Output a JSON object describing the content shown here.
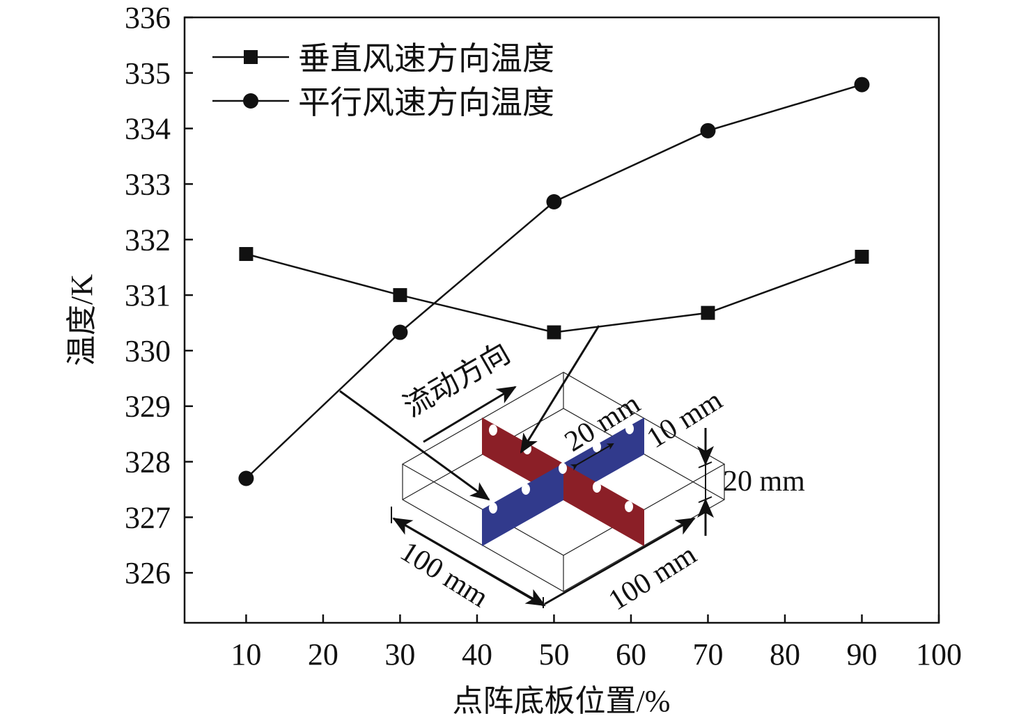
{
  "chart_data": {
    "type": "line",
    "xlabel": "点阵底板位置/%",
    "ylabel": "温度/K",
    "xlim": [
      2,
      100
    ],
    "ylim": [
      325.1,
      336
    ],
    "xticks": [
      10,
      20,
      30,
      40,
      50,
      60,
      70,
      80,
      90,
      100
    ],
    "yticks": [
      326,
      327,
      328,
      329,
      330,
      331,
      332,
      333,
      334,
      335,
      336
    ],
    "grid": false,
    "legend_position": "top-left",
    "x": [
      10,
      30,
      50,
      70,
      90
    ],
    "series": [
      {
        "name": "垂直风速方向温度",
        "marker": "square",
        "values": [
          331.74,
          331.0,
          330.33,
          330.68,
          331.69
        ]
      },
      {
        "name": "平行风速方向温度",
        "marker": "circle",
        "values": [
          327.7,
          330.33,
          332.68,
          333.96,
          334.79
        ]
      }
    ],
    "inset": {
      "flow_label": "流动方向",
      "dims": {
        "spacing": "20 mm",
        "hole": "10 mm",
        "height": "20 mm",
        "length_left": "100 mm",
        "length_right": "100 mm"
      },
      "colors": {
        "plate_parallel": "#8b1f27",
        "plate_perpendicular": "#313a8c"
      }
    }
  }
}
